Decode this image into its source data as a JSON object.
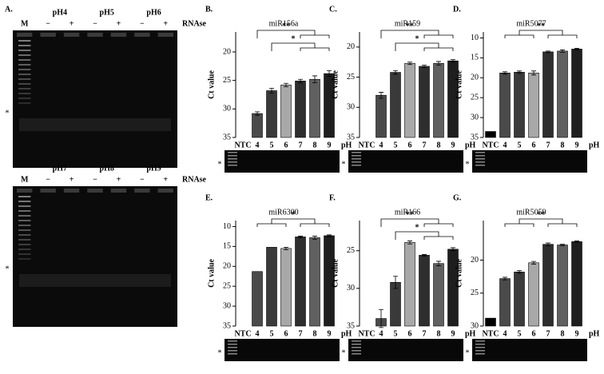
{
  "gel_panels": {
    "label": "A.",
    "gels": [
      {
        "marker": "M",
        "lanes": [
          "pH4",
          "pH5",
          "pH6"
        ],
        "signs": [
          "−",
          "+",
          "−",
          "+",
          "−",
          "+"
        ],
        "enzyme": "RNAse",
        "star": "*"
      },
      {
        "marker": "M",
        "lanes": [
          "pH7",
          "pH8",
          "pH9"
        ],
        "signs": [
          "−",
          "+",
          "−",
          "+",
          "−",
          "+"
        ],
        "enzyme": "RNAse",
        "star": "*"
      }
    ]
  },
  "chart_data": [
    {
      "type": "bar",
      "panel": "B.",
      "title": "miR156a",
      "y_label": "Ct value",
      "x_label": "pH",
      "strip_star": "*",
      "categories": [
        "NTC",
        "4",
        "5",
        "6",
        "7",
        "8",
        "9"
      ],
      "values": [
        null,
        30.8,
        26.8,
        25.8,
        25.1,
        24.8,
        23.8
      ],
      "errors": [
        null,
        0.3,
        0.4,
        0.3,
        0.3,
        0.6,
        0.5
      ],
      "colors": [
        "#000000",
        "#4a4a4a",
        "#3a3a3a",
        "#a8a8a8",
        "#2e2e2e",
        "#606060",
        "#1e1e1e"
      ],
      "ylim": [
        35,
        16.5
      ],
      "yticks": [
        20,
        25,
        30,
        35
      ],
      "annotations": [
        "**",
        "*"
      ]
    },
    {
      "type": "bar",
      "panel": "C.",
      "title": "miR159",
      "y_label": "Ct value",
      "x_label": "pH",
      "strip_star": "*",
      "categories": [
        "NTC",
        "4",
        "5",
        "6",
        "7",
        "8",
        "9"
      ],
      "values": [
        null,
        28.0,
        24.2,
        22.7,
        23.2,
        22.7,
        22.3
      ],
      "errors": [
        null,
        0.5,
        0.3,
        0.2,
        0.2,
        0.3,
        0.2
      ],
      "colors": [
        "#000000",
        "#4a4a4a",
        "#3a3a3a",
        "#a8a8a8",
        "#2e2e2e",
        "#606060",
        "#1e1e1e"
      ],
      "ylim": [
        35,
        17.5
      ],
      "yticks": [
        20,
        25,
        30,
        35
      ],
      "annotations": [
        "**",
        "*"
      ]
    },
    {
      "type": "bar",
      "panel": "D.",
      "title": "miR5077",
      "y_label": "Ct value",
      "x_label": "pH",
      "strip_star": "*",
      "categories": [
        "NTC",
        "4",
        "5",
        "6",
        "7",
        "8",
        "9"
      ],
      "values": [
        33.5,
        18.8,
        18.6,
        18.8,
        13.5,
        13.3,
        12.8
      ],
      "errors": [
        null,
        0.3,
        0.3,
        0.5,
        0.2,
        0.3,
        0.2
      ],
      "colors": [
        "#000000",
        "#4a4a4a",
        "#3a3a3a",
        "#a8a8a8",
        "#2e2e2e",
        "#606060",
        "#1e1e1e"
      ],
      "ylim": [
        35,
        8.5
      ],
      "yticks": [
        10,
        15,
        20,
        25,
        30,
        35
      ],
      "annotations": [
        "**"
      ]
    },
    {
      "type": "bar",
      "panel": "E.",
      "title": "miR6300",
      "y_label": "Ct value",
      "x_label": "pH",
      "strip_star": "*",
      "categories": [
        "NTC",
        "4",
        "5",
        "6",
        "7",
        "8",
        "9"
      ],
      "values": [
        null,
        21.3,
        15.2,
        15.5,
        12.6,
        12.8,
        12.3
      ],
      "errors": [
        null,
        null,
        null,
        0.3,
        0.2,
        0.4,
        0.2
      ],
      "colors": [
        "#000000",
        "#4a4a4a",
        "#3a3a3a",
        "#a8a8a8",
        "#2e2e2e",
        "#606060",
        "#1e1e1e"
      ],
      "ylim": [
        35,
        8.5
      ],
      "yticks": [
        10,
        15,
        20,
        25,
        30,
        35
      ],
      "annotations": [
        "*"
      ]
    },
    {
      "type": "bar",
      "panel": "F.",
      "title": "miR166",
      "y_label": "Ct value",
      "x_label": "pH",
      "strip_star": "*",
      "categories": [
        "NTC",
        "4",
        "5",
        "6",
        "7",
        "8",
        "9"
      ],
      "values": [
        null,
        34.0,
        29.2,
        23.9,
        25.6,
        26.7,
        24.8
      ],
      "errors": [
        null,
        1.2,
        0.8,
        0.2,
        0.1,
        0.3,
        0.2
      ],
      "colors": [
        "#000000",
        "#4a4a4a",
        "#3a3a3a",
        "#a8a8a8",
        "#2e2e2e",
        "#606060",
        "#1e1e1e"
      ],
      "ylim": [
        35,
        21
      ],
      "yticks": [
        25,
        30,
        35
      ],
      "annotations": [
        "**",
        "*"
      ]
    },
    {
      "type": "bar",
      "panel": "G.",
      "title": "miR5059",
      "y_label": "Ct value",
      "x_label": "pH",
      "strip_star": "*",
      "categories": [
        "NTC",
        "4",
        "5",
        "6",
        "7",
        "8",
        "9"
      ],
      "values": [
        28.8,
        22.8,
        21.8,
        20.4,
        17.6,
        17.7,
        17.2
      ],
      "errors": [
        null,
        0.2,
        0.2,
        0.2,
        0.2,
        0.1,
        0.1
      ],
      "colors": [
        "#000000",
        "#4a4a4a",
        "#3a3a3a",
        "#a8a8a8",
        "#2e2e2e",
        "#606060",
        "#1e1e1e"
      ],
      "ylim": [
        30,
        14
      ],
      "yticks": [
        20,
        25,
        30
      ],
      "annotations": [
        "**"
      ]
    }
  ]
}
